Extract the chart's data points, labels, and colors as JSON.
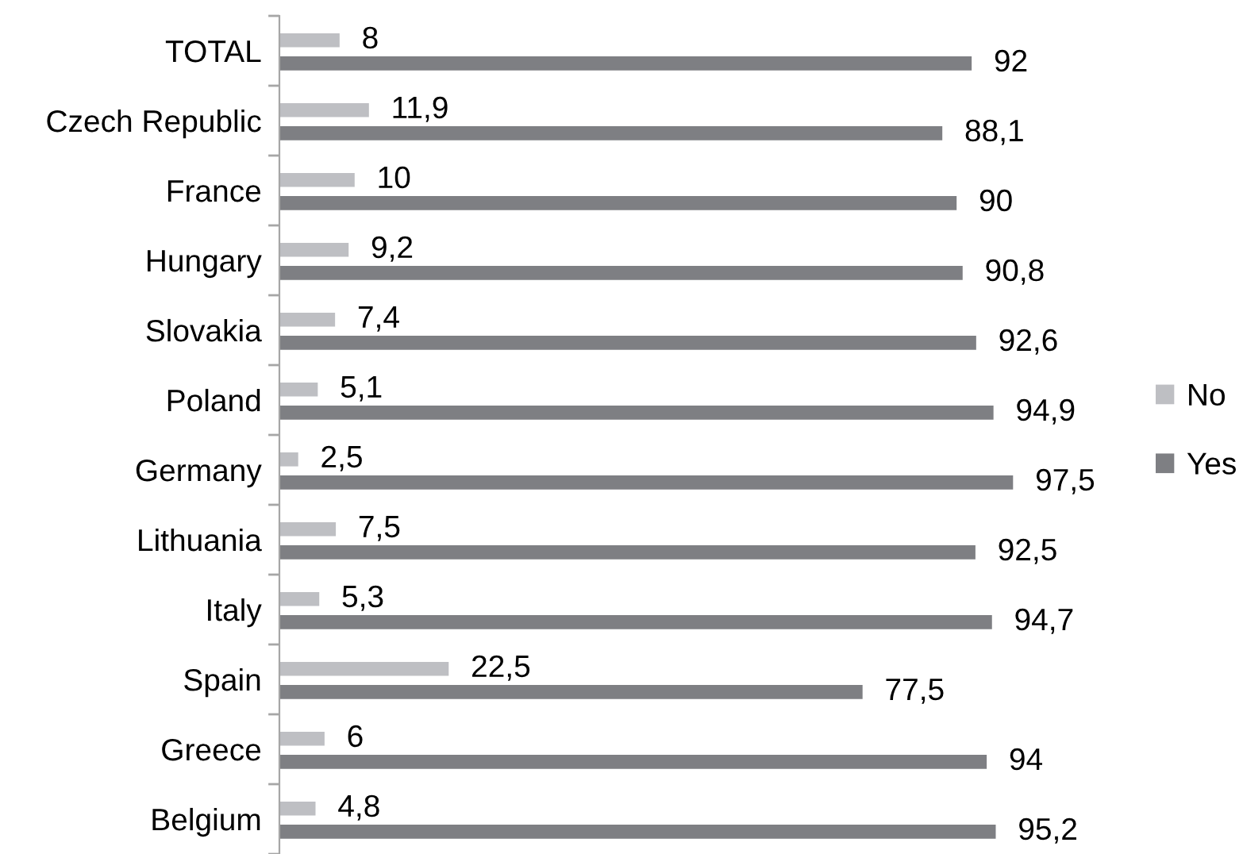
{
  "chart_data": {
    "type": "bar",
    "orientation": "horizontal",
    "categories": [
      "TOTAL",
      "Czech Republic",
      "France",
      "Hungary",
      "Slovakia",
      "Poland",
      "Germany",
      "Lithuania",
      "Italy",
      "Spain",
      "Greece",
      "Belgium"
    ],
    "series": [
      {
        "name": "No",
        "color": "#bebfc3",
        "values": [
          8,
          11.9,
          10,
          9.2,
          7.4,
          5.1,
          2.5,
          7.5,
          5.3,
          22.5,
          6,
          4.8
        ],
        "value_labels": [
          "8",
          "11,9",
          "10",
          "9,2",
          "7,4",
          "5,1",
          "2,5",
          "7,5",
          "5,3",
          "22,5",
          "6",
          "4,8"
        ]
      },
      {
        "name": "Yes",
        "color": "#7e7f83",
        "values": [
          92,
          88.1,
          90,
          90.8,
          92.6,
          94.9,
          97.5,
          92.5,
          94.7,
          77.5,
          94,
          95.2
        ],
        "value_labels": [
          "92",
          "88,1",
          "90",
          "90,8",
          "92,6",
          "94,9",
          "97,5",
          "92,5",
          "94,7",
          "77,5",
          "94",
          "95,2"
        ]
      }
    ],
    "tick_labels": "y",
    "legend": "right",
    "grid": false
  }
}
